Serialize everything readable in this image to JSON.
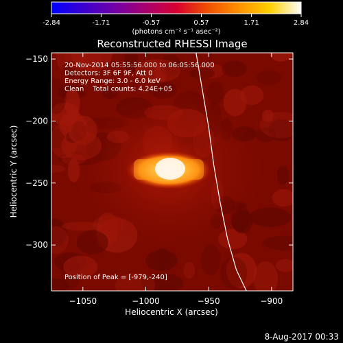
{
  "colorbar": {
    "ticks": [
      "-2.84",
      "-1.71",
      "-0.57",
      "0.57",
      "1.71",
      "2.84"
    ],
    "tick_values": [
      -2.84,
      -1.71,
      -0.57,
      0.57,
      1.71,
      2.84
    ],
    "range": [
      -2.84,
      2.84
    ],
    "units_label": "(photons cm⁻² s⁻¹ asec⁻²)",
    "colormap": [
      "#0000ff",
      "#3a00d0",
      "#7000a8",
      "#a80070",
      "#d80030",
      "#f05000",
      "#ff9000",
      "#ffd000",
      "#ffffff"
    ]
  },
  "chart_data": {
    "type": "heatmap",
    "title": "Reconstructed RHESSI Image",
    "xlabel": "Heliocentric X (arcsec)",
    "ylabel": "Heliocentric Y (arcsec)",
    "xlim": [
      -1075,
      -883
    ],
    "ylim": [
      -337,
      -145
    ],
    "x_ticks": [
      -1050,
      -1000,
      -950,
      -900
    ],
    "y_ticks": [
      -150,
      -200,
      -250,
      -300
    ],
    "x_tick_labels": [
      "−1050",
      "−1000",
      "−950",
      "−900"
    ],
    "y_tick_labels": [
      "−150",
      "−200",
      "−250",
      "−300"
    ],
    "peak": [
      -979,
      -240
    ],
    "limb": [
      [
        -960,
        -145
      ],
      [
        -955,
        -175
      ],
      [
        -950,
        -205
      ],
      [
        -946,
        -235
      ],
      [
        -941,
        -265
      ],
      [
        -935,
        -295
      ],
      [
        -928,
        -320
      ],
      [
        -920,
        -337
      ]
    ],
    "annotations": [
      "20-Nov-2014 05:55:56.000 to 06:05:56.000",
      "Detectors: 3F 6F 9F, Att 0",
      "Energy Range: 3.0 - 6.0 keV",
      "Clean    Total counts: 4.24E+05"
    ],
    "peak_label": "Position of Peak = [-979,-240]"
  },
  "footer": {
    "date": "8-Aug-2017 00:33"
  }
}
